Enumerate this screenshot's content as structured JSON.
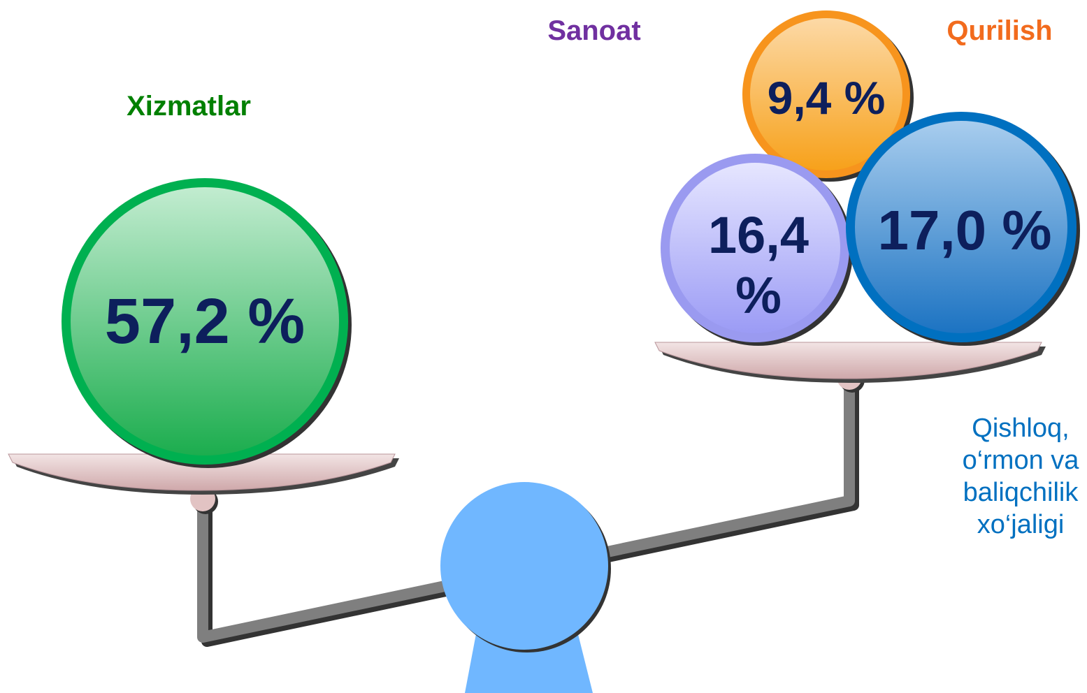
{
  "left": {
    "label": "Xizmatlar",
    "value": "57,2 %"
  },
  "right": {
    "labels": {
      "sanoat": "Sanoat",
      "qurilish": "Qurilish",
      "qishloq": "Qishloq, o‘rmon va baliqchilik xo‘jaligi"
    },
    "values": {
      "qurilish": "9,4 %",
      "sanoat": "16,4 %",
      "qishloq": "17,0 %"
    }
  }
}
